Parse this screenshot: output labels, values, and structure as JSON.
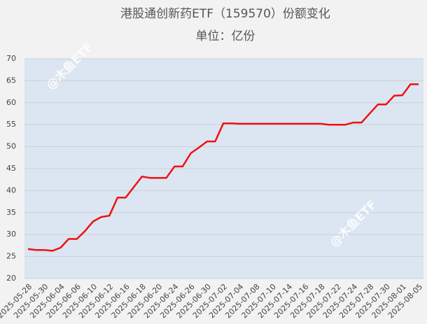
{
  "chart_data": {
    "type": "line",
    "title": "港股通创新药ETF（159570）份额变化",
    "subtitle": "单位：亿份",
    "annotations": [
      "@木鱼ETF",
      "@木鱼ETF"
    ],
    "categories": [
      "2025-05-28",
      null,
      "2025-05-30",
      null,
      "2025-06-04",
      null,
      "2025-06-06",
      null,
      "2025-06-10",
      null,
      "2025-06-12",
      null,
      "2025-06-16",
      null,
      "2025-06-18",
      null,
      "2025-06-20",
      null,
      "2025-06-24",
      null,
      "2025-06-26",
      null,
      "2025-06-30",
      null,
      "2025-07-02",
      null,
      "2025-07-04",
      null,
      "2025-07-08",
      null,
      "2025-07-10",
      null,
      "2025-07-14",
      null,
      "2025-07-16",
      null,
      "2025-07-18",
      null,
      "2025-07-22",
      null,
      "2025-07-24",
      null,
      "2025-07-28",
      null,
      "2025-07-30",
      null,
      "2025-08-01",
      null,
      "2025-08-05"
    ],
    "series": [
      {
        "name": "份额",
        "color": "#ee1111",
        "values": [
          26.7,
          26.5,
          26.5,
          26.3,
          27.0,
          29.0,
          29.0,
          30.8,
          33.0,
          34.0,
          34.3,
          38.4,
          38.4,
          40.8,
          43.2,
          42.9,
          42.9,
          42.9,
          45.5,
          45.5,
          48.5,
          49.8,
          51.2,
          51.2,
          55.3,
          55.3,
          55.2,
          55.2,
          55.2,
          55.2,
          55.2,
          55.2,
          55.2,
          55.2,
          55.2,
          55.2,
          55.2,
          55.0,
          55.0,
          55.0,
          55.5,
          55.5,
          57.6,
          59.6,
          59.6,
          61.6,
          61.7,
          64.2,
          64.2
        ]
      }
    ],
    "ylim": [
      20,
      70
    ],
    "yticks": [
      20,
      25,
      30,
      35,
      40,
      45,
      50,
      55,
      60,
      65,
      70
    ],
    "grid": true
  }
}
